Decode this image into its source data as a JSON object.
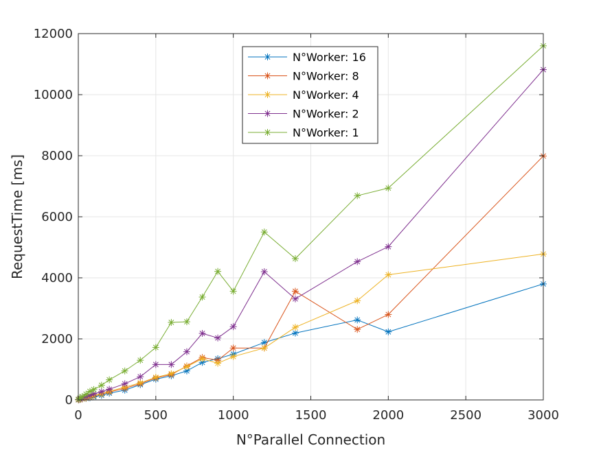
{
  "chart_data": {
    "type": "line",
    "title": "",
    "xlabel": "N°Parallel Connection",
    "ylabel": "RequestTime [ms]",
    "xlim": [
      0,
      3000
    ],
    "ylim": [
      0,
      12000
    ],
    "xticks": [
      0,
      500,
      1000,
      1500,
      2000,
      2500,
      3000
    ],
    "yticks": [
      0,
      2000,
      4000,
      6000,
      8000,
      10000,
      12000
    ],
    "xtick_labels": [
      "0",
      "500",
      "1000",
      "1500",
      "2000",
      "2500",
      "3000"
    ],
    "ytick_labels": [
      "0",
      "2000",
      "4000",
      "6000",
      "8000",
      "10000",
      "12000"
    ],
    "grid": true,
    "legend_position": "top-center",
    "marker": "asterisk",
    "series": [
      {
        "name": "N°Worker: 16",
        "color": "#0072BD",
        "x": [
          1,
          10,
          25,
          50,
          75,
          100,
          150,
          200,
          300,
          400,
          500,
          600,
          700,
          800,
          900,
          1000,
          1200,
          1400,
          1800,
          2000,
          3000
        ],
        "y": [
          5,
          15,
          30,
          50,
          70,
          100,
          150,
          220,
          320,
          500,
          680,
          790,
          950,
          1230,
          1350,
          1500,
          1880,
          2190,
          2620,
          2230,
          3800
        ]
      },
      {
        "name": "N°Worker: 8",
        "color": "#D95319",
        "x": [
          1,
          10,
          25,
          50,
          75,
          100,
          150,
          200,
          300,
          400,
          500,
          600,
          700,
          800,
          900,
          1000,
          1200,
          1400,
          1800,
          2000,
          3000
        ],
        "y": [
          5,
          20,
          35,
          60,
          90,
          130,
          190,
          260,
          380,
          530,
          720,
          830,
          1110,
          1390,
          1300,
          1700,
          1700,
          3560,
          2310,
          2800,
          7990
        ]
      },
      {
        "name": "N°Worker: 4",
        "color": "#EDB120",
        "x": [
          1,
          10,
          25,
          50,
          75,
          100,
          150,
          200,
          300,
          400,
          500,
          600,
          700,
          800,
          900,
          1000,
          1200,
          1400,
          1800,
          2000,
          3000
        ],
        "y": [
          5,
          20,
          35,
          65,
          95,
          140,
          200,
          280,
          420,
          560,
          740,
          860,
          1090,
          1350,
          1200,
          1420,
          1700,
          2380,
          3250,
          4100,
          4780
        ]
      },
      {
        "name": "N°Worker: 2",
        "color": "#7E2F8E",
        "x": [
          1,
          10,
          25,
          50,
          75,
          100,
          150,
          200,
          300,
          400,
          500,
          600,
          700,
          800,
          900,
          1000,
          1200,
          1400,
          1800,
          2000,
          3000
        ],
        "y": [
          10,
          30,
          60,
          100,
          150,
          200,
          270,
          350,
          530,
          760,
          1160,
          1160,
          1580,
          2180,
          2030,
          2400,
          4200,
          3310,
          4530,
          5020,
          10820
        ]
      },
      {
        "name": "N°Worker: 1",
        "color": "#77AC30",
        "x": [
          1,
          10,
          25,
          50,
          75,
          100,
          150,
          200,
          300,
          400,
          500,
          600,
          700,
          800,
          900,
          1000,
          1200,
          1400,
          1800,
          2000,
          3000
        ],
        "y": [
          20,
          60,
          110,
          190,
          280,
          340,
          480,
          660,
          950,
          1300,
          1720,
          2540,
          2560,
          3370,
          4210,
          3560,
          5500,
          4630,
          6690,
          6940,
          11600
        ]
      }
    ]
  }
}
